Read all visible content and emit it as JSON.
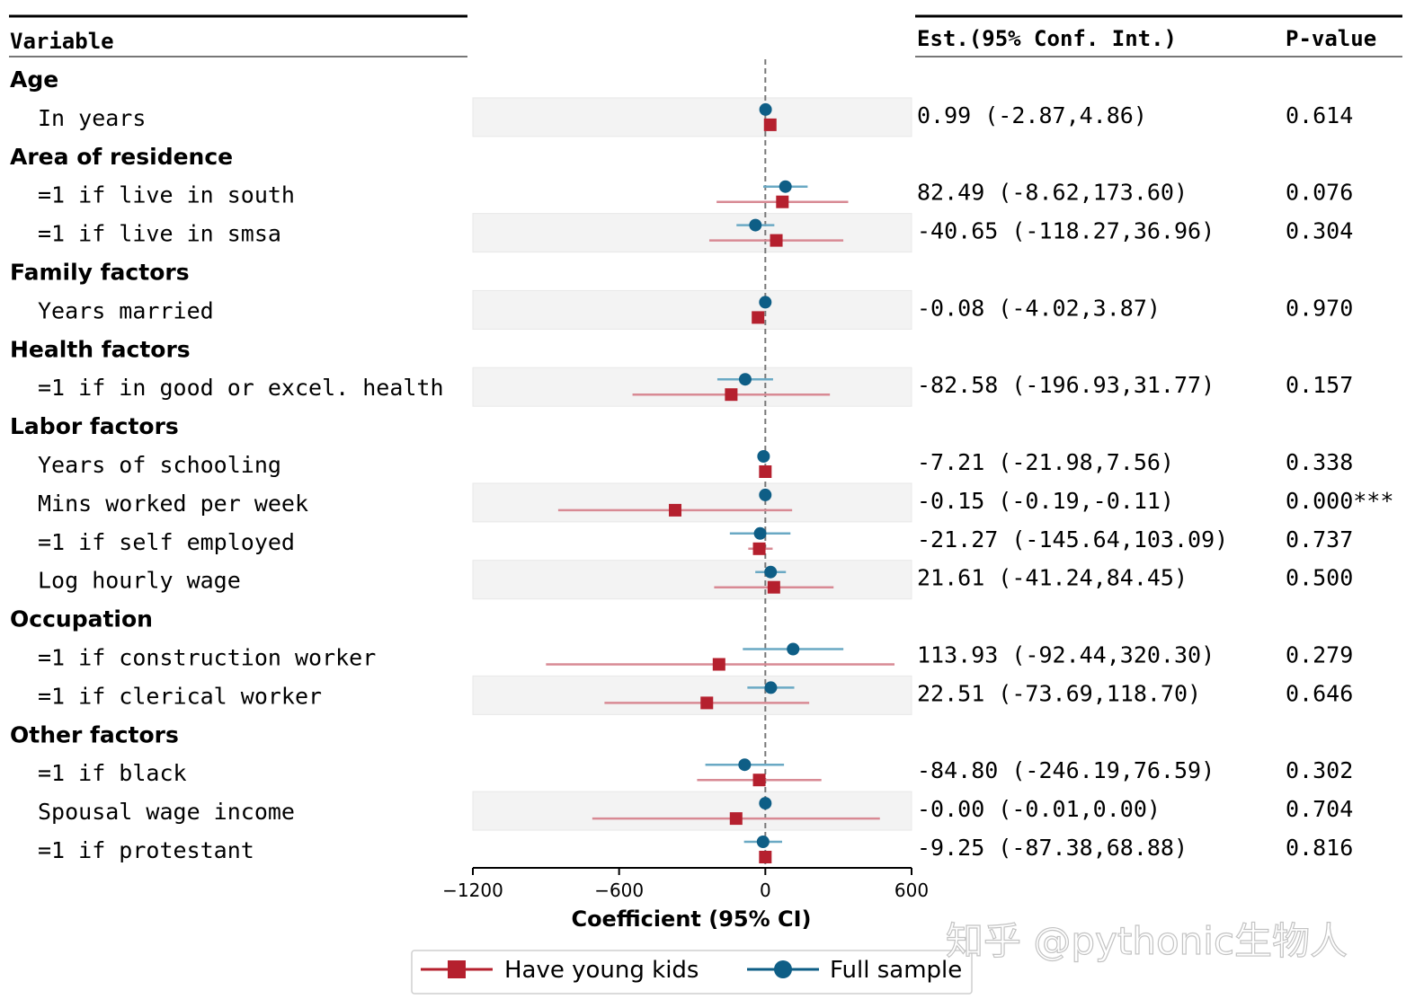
{
  "columns": {
    "variable": "Variable",
    "estimate": "Est.(95% Conf. Int.)",
    "pvalue": "P-value"
  },
  "colors": {
    "young_kids": "#b5202e",
    "young_kids_ci": "#d88a94",
    "full_sample": "#0e5e86",
    "full_sample_ci": "#6aa9c4",
    "band": "#f3f3f3",
    "refline": "#777777"
  },
  "chart_data": {
    "type": "forest",
    "xlabel": "Coefficient (95% CI)",
    "xlim": [
      -1200,
      600
    ],
    "xticks": [
      -1200,
      -600,
      0,
      600
    ],
    "xtick_labels": [
      "−1200",
      "−600",
      "0",
      "600"
    ],
    "reference_line": 0,
    "legend": {
      "placement": "bottom-center",
      "entries": [
        {
          "series": "young_kids",
          "label": "Have young kids",
          "marker": "square"
        },
        {
          "series": "full_sample",
          "label": "Full sample",
          "marker": "circle"
        }
      ]
    },
    "groups": [
      {
        "label": "Age",
        "rows": [
          {
            "label": "In years",
            "est": "0.99 (-2.87,4.86)",
            "p": "0.614",
            "band": true,
            "full": {
              "v": 0.99,
              "lo": -2.87,
              "hi": 4.86
            },
            "kids": {
              "v": 20,
              "lo": 12,
              "hi": 28
            }
          }
        ]
      },
      {
        "label": "Area of residence",
        "rows": [
          {
            "label": "=1 if live in south",
            "est": "82.49 (-8.62,173.60)",
            "p": "0.076",
            "band": false,
            "full": {
              "v": 82.49,
              "lo": -8.62,
              "hi": 173.6
            },
            "kids": {
              "v": 70,
              "lo": -200,
              "hi": 340
            }
          },
          {
            "label": "=1 if live in smsa",
            "est": "-40.65 (-118.27,36.96)",
            "p": "0.304",
            "band": true,
            "full": {
              "v": -40.65,
              "lo": -118.27,
              "hi": 36.96
            },
            "kids": {
              "v": 45,
              "lo": -230,
              "hi": 320
            }
          }
        ]
      },
      {
        "label": "Family factors",
        "rows": [
          {
            "label": "Years married",
            "est": "-0.08 (-4.02,3.87)",
            "p": "0.970",
            "band": true,
            "full": {
              "v": -0.08,
              "lo": -4.02,
              "hi": 3.87
            },
            "kids": {
              "v": -30,
              "lo": -45,
              "hi": -10
            }
          }
        ]
      },
      {
        "label": "Health factors",
        "rows": [
          {
            "label": "=1 if in good or excel. health",
            "est": "-82.58 (-196.93,31.77)",
            "p": "0.157",
            "band": true,
            "full": {
              "v": -82.58,
              "lo": -196.93,
              "hi": 31.77
            },
            "kids": {
              "v": -140,
              "lo": -545,
              "hi": 265
            }
          }
        ]
      },
      {
        "label": "Labor factors",
        "rows": [
          {
            "label": "Years of schooling",
            "est": "-7.21 (-21.98,7.56)",
            "p": "0.338",
            "band": false,
            "full": {
              "v": -7.21,
              "lo": -21.98,
              "hi": 7.56
            },
            "kids": {
              "v": 0,
              "lo": -12,
              "hi": 12
            }
          },
          {
            "label": "Mins worked per week",
            "est": "-0.15 (-0.19,-0.11)",
            "p": "0.000***",
            "band": true,
            "full": {
              "v": -0.15,
              "lo": -0.19,
              "hi": -0.11
            },
            "kids": {
              "v": -370,
              "lo": -850,
              "hi": 110
            }
          },
          {
            "label": "=1 if self employed",
            "est": "-21.27 (-145.64,103.09)",
            "p": "0.737",
            "band": false,
            "full": {
              "v": -21.27,
              "lo": -145.64,
              "hi": 103.09
            },
            "kids": {
              "v": -25,
              "lo": -70,
              "hi": 30
            }
          },
          {
            "label": "Log hourly wage",
            "est": "21.61 (-41.24,84.45)",
            "p": "0.500",
            "band": true,
            "full": {
              "v": 21.61,
              "lo": -41.24,
              "hi": 84.45
            },
            "kids": {
              "v": 35,
              "lo": -210,
              "hi": 280
            }
          }
        ]
      },
      {
        "label": "Occupation",
        "rows": [
          {
            "label": "=1 if construction worker",
            "est": "113.93 (-92.44,320.30)",
            "p": "0.279",
            "band": false,
            "full": {
              "v": 113.93,
              "lo": -92.44,
              "hi": 320.3
            },
            "kids": {
              "v": -190,
              "lo": -900,
              "hi": 530
            }
          },
          {
            "label": "=1 if clerical worker",
            "est": "22.51 (-73.69,118.70)",
            "p": "0.646",
            "band": true,
            "full": {
              "v": 22.51,
              "lo": -73.69,
              "hi": 118.7
            },
            "kids": {
              "v": -240,
              "lo": -660,
              "hi": 180
            }
          }
        ]
      },
      {
        "label": "Other factors",
        "rows": [
          {
            "label": "=1 if black",
            "est": "-84.80 (-246.19,76.59)",
            "p": "0.302",
            "band": false,
            "full": {
              "v": -84.8,
              "lo": -246.19,
              "hi": 76.59
            },
            "kids": {
              "v": -25,
              "lo": -280,
              "hi": 230
            }
          },
          {
            "label": "Spousal wage income",
            "est": "-0.00 (-0.01,0.00)",
            "p": "0.704",
            "band": true,
            "full": {
              "v": 0.0,
              "lo": -0.01,
              "hi": 0.0
            },
            "kids": {
              "v": -120,
              "lo": -710,
              "hi": 470
            }
          },
          {
            "label": "=1 if protestant",
            "est": "-9.25 (-87.38,68.88)",
            "p": "0.816",
            "band": false,
            "full": {
              "v": -9.25,
              "lo": -87.38,
              "hi": 68.88
            },
            "kids": {
              "v": 0,
              "lo": -8,
              "hi": 8
            }
          }
        ]
      }
    ]
  },
  "watermark": "知乎 @pythonic生物人"
}
